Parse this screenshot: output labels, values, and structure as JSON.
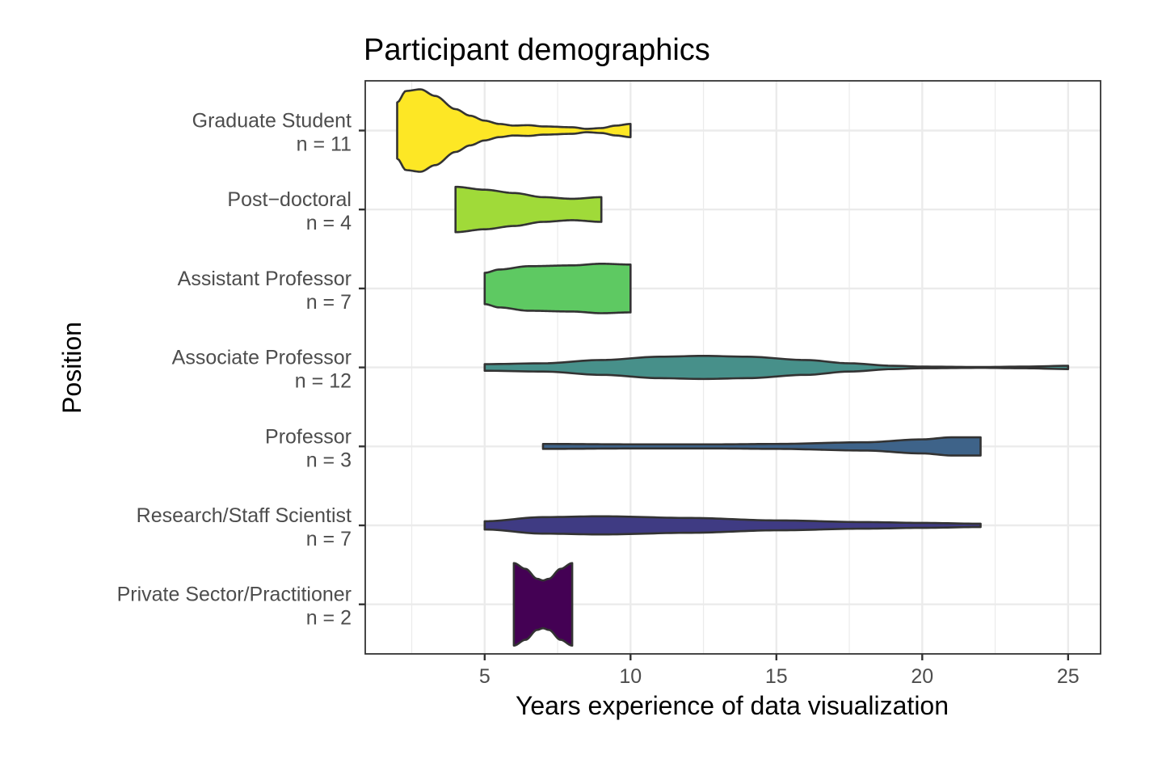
{
  "chart_data": {
    "type": "violin",
    "title": "Participant demographics",
    "xlabel": "Years experience of data visualization",
    "ylabel": "Position",
    "xlim": [
      1.6,
      26.0
    ],
    "x_ticks": [
      5,
      10,
      15,
      20,
      25
    ],
    "x_minor": [
      2.5,
      7.5,
      12.5,
      17.5,
      22.5
    ],
    "grid": true,
    "legend": "none",
    "categories": [
      {
        "name": "Graduate Student",
        "n_label": "n = 11",
        "color": "#FDE725",
        "range": [
          2,
          10
        ],
        "profile": [
          [
            2,
            0.68
          ],
          [
            2.3,
            0.96
          ],
          [
            2.8,
            1.0
          ],
          [
            3.3,
            0.84
          ],
          [
            4,
            0.52
          ],
          [
            4.5,
            0.36
          ],
          [
            5,
            0.24
          ],
          [
            5.5,
            0.16
          ],
          [
            6,
            0.12
          ],
          [
            6.5,
            0.13
          ],
          [
            7,
            0.1
          ],
          [
            8,
            0.08
          ],
          [
            8.5,
            0.04
          ],
          [
            9,
            0.06
          ],
          [
            9.5,
            0.12
          ],
          [
            10,
            0.16
          ]
        ]
      },
      {
        "name": "Post−doctoral",
        "n_label": "n = 4",
        "color": "#A0DA39",
        "range": [
          4,
          9
        ],
        "profile": [
          [
            4,
            0.55
          ],
          [
            5,
            0.48
          ],
          [
            6,
            0.4
          ],
          [
            7,
            0.3
          ],
          [
            8,
            0.26
          ],
          [
            9,
            0.3
          ]
        ]
      },
      {
        "name": "Assistant Professor",
        "n_label": "n = 7",
        "color": "#5EC962",
        "range": [
          5,
          10
        ],
        "profile": [
          [
            5,
            0.38
          ],
          [
            5.5,
            0.46
          ],
          [
            6.5,
            0.54
          ],
          [
            8,
            0.56
          ],
          [
            9,
            0.6
          ],
          [
            10,
            0.58
          ]
        ]
      },
      {
        "name": "Associate Professor",
        "n_label": "n = 12",
        "color": "#47908A",
        "range": [
          5,
          25
        ],
        "profile": [
          [
            5,
            0.08
          ],
          [
            7,
            0.1
          ],
          [
            9,
            0.18
          ],
          [
            11,
            0.26
          ],
          [
            12.5,
            0.28
          ],
          [
            14,
            0.26
          ],
          [
            16,
            0.18
          ],
          [
            17.5,
            0.1
          ],
          [
            19,
            0.04
          ],
          [
            20,
            0.02
          ],
          [
            22,
            0.01
          ],
          [
            23.5,
            0.02
          ],
          [
            25,
            0.04
          ]
        ]
      },
      {
        "name": "Professor",
        "n_label": "n = 3",
        "color": "#3E6389",
        "range": [
          7,
          22
        ],
        "profile": [
          [
            7,
            0.06
          ],
          [
            10,
            0.05
          ],
          [
            13,
            0.05
          ],
          [
            15,
            0.06
          ],
          [
            18,
            0.1
          ],
          [
            20,
            0.17
          ],
          [
            21,
            0.22
          ],
          [
            22,
            0.22
          ]
        ]
      },
      {
        "name": "Research/Staff Scientist",
        "n_label": "n = 7",
        "color": "#3F3B83",
        "range": [
          5,
          22
        ],
        "profile": [
          [
            5,
            0.1
          ],
          [
            7,
            0.2
          ],
          [
            9,
            0.22
          ],
          [
            12,
            0.18
          ],
          [
            15,
            0.12
          ],
          [
            18,
            0.08
          ],
          [
            20,
            0.06
          ],
          [
            22,
            0.04
          ]
        ]
      },
      {
        "name": "Private Sector/Practitioner",
        "n_label": "n = 2",
        "color": "#440154",
        "range": [
          6,
          8
        ],
        "profile": [
          [
            6,
            1.0
          ],
          [
            6.4,
            0.86
          ],
          [
            6.8,
            0.62
          ],
          [
            7,
            0.58
          ],
          [
            7.2,
            0.62
          ],
          [
            7.6,
            0.86
          ],
          [
            8,
            1.0
          ]
        ]
      }
    ]
  }
}
